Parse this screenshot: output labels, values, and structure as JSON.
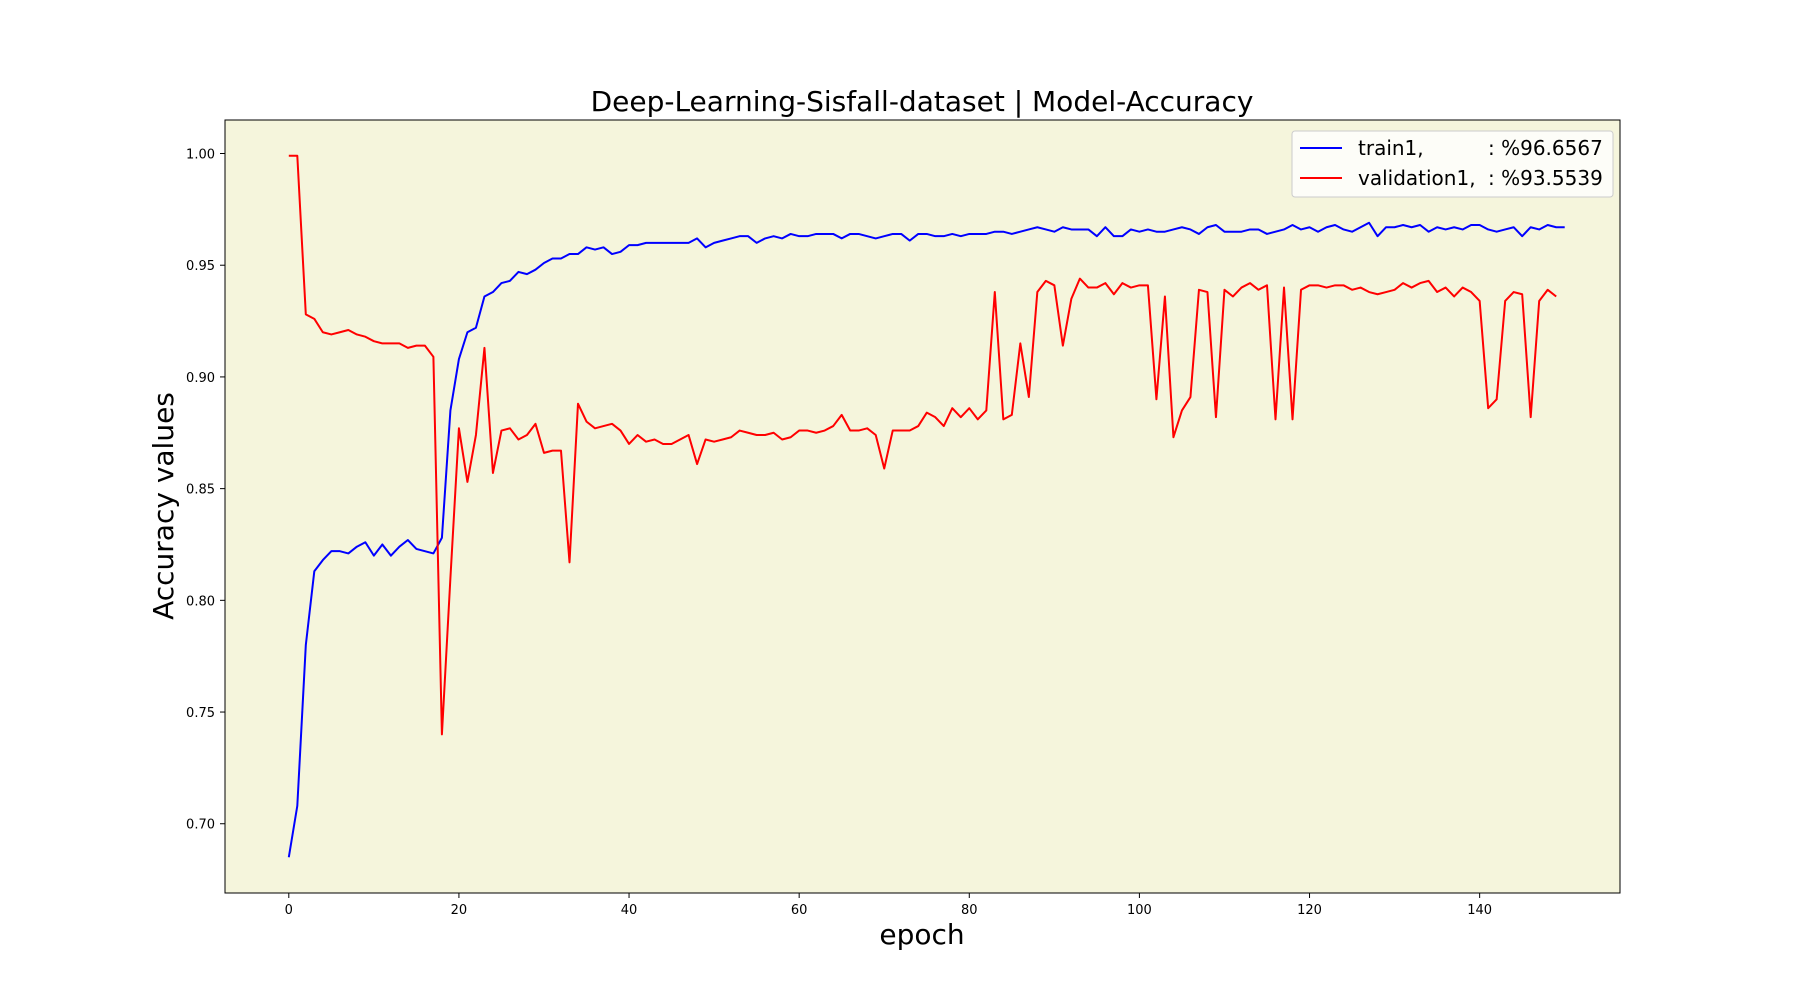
{
  "chart_data": {
    "type": "line",
    "title": "Deep-Learning-Sisfall-dataset  | Model-Accuracy",
    "xlabel": "epoch",
    "ylabel": "Accuracy values",
    "xlim": [
      -7.5,
      156.5
    ],
    "ylim": [
      0.669,
      1.015
    ],
    "xticks": [
      0,
      20,
      40,
      60,
      80,
      100,
      120,
      140
    ],
    "yticks": [
      0.7,
      0.75,
      0.8,
      0.85,
      0.9,
      0.95,
      1.0
    ],
    "xtick_labels": [
      "0",
      "20",
      "40",
      "60",
      "80",
      "100",
      "120",
      "140"
    ],
    "ytick_labels": [
      "0.70",
      "0.75",
      "0.80",
      "0.85",
      "0.90",
      "0.95",
      "1.00"
    ],
    "grid": false,
    "legend_position": "top-right",
    "plot_background": "#f5f5dc",
    "series": [
      {
        "name": "train1,",
        "legend_value": ": %96.6567",
        "color": "#0000ff",
        "values": [
          0.685,
          0.708,
          0.78,
          0.813,
          0.818,
          0.822,
          0.822,
          0.821,
          0.824,
          0.826,
          0.82,
          0.825,
          0.82,
          0.824,
          0.827,
          0.823,
          0.822,
          0.821,
          0.828,
          0.885,
          0.908,
          0.92,
          0.922,
          0.936,
          0.938,
          0.942,
          0.943,
          0.947,
          0.946,
          0.948,
          0.951,
          0.953,
          0.953,
          0.955,
          0.955,
          0.958,
          0.957,
          0.958,
          0.955,
          0.956,
          0.959,
          0.959,
          0.96,
          0.96,
          0.96,
          0.96,
          0.96,
          0.96,
          0.962,
          0.958,
          0.96,
          0.961,
          0.962,
          0.963,
          0.963,
          0.96,
          0.962,
          0.963,
          0.962,
          0.964,
          0.963,
          0.963,
          0.964,
          0.964,
          0.964,
          0.962,
          0.964,
          0.964,
          0.963,
          0.962,
          0.963,
          0.964,
          0.964,
          0.961,
          0.964,
          0.964,
          0.963,
          0.963,
          0.964,
          0.963,
          0.964,
          0.964,
          0.964,
          0.965,
          0.965,
          0.964,
          0.965,
          0.966,
          0.967,
          0.966,
          0.965,
          0.967,
          0.966,
          0.966,
          0.966,
          0.963,
          0.967,
          0.963,
          0.963,
          0.966,
          0.965,
          0.966,
          0.965,
          0.965,
          0.966,
          0.967,
          0.966,
          0.964,
          0.967,
          0.968,
          0.965,
          0.965,
          0.965,
          0.966,
          0.966,
          0.964,
          0.965,
          0.966,
          0.968,
          0.966,
          0.967,
          0.965,
          0.967,
          0.968,
          0.966,
          0.965,
          0.967,
          0.969,
          0.963,
          0.967,
          0.967,
          0.968,
          0.967,
          0.968,
          0.965,
          0.967,
          0.966,
          0.967,
          0.966,
          0.968,
          0.968,
          0.966,
          0.965,
          0.966,
          0.967,
          0.963,
          0.967,
          0.966,
          0.968,
          0.967,
          0.967
        ]
      },
      {
        "name": "validation1,",
        "legend_value": ": %93.5539",
        "color": "#ff0000",
        "values": [
          0.999,
          0.999,
          0.928,
          0.926,
          0.92,
          0.919,
          0.92,
          0.921,
          0.919,
          0.918,
          0.916,
          0.915,
          0.915,
          0.915,
          0.913,
          0.914,
          0.914,
          0.909,
          0.74,
          0.81,
          0.877,
          0.853,
          0.874,
          0.913,
          0.857,
          0.876,
          0.877,
          0.872,
          0.874,
          0.879,
          0.866,
          0.867,
          0.867,
          0.817,
          0.888,
          0.88,
          0.877,
          0.878,
          0.879,
          0.876,
          0.87,
          0.874,
          0.871,
          0.872,
          0.87,
          0.87,
          0.872,
          0.874,
          0.861,
          0.872,
          0.871,
          0.872,
          0.873,
          0.876,
          0.875,
          0.874,
          0.874,
          0.875,
          0.872,
          0.873,
          0.876,
          0.876,
          0.875,
          0.876,
          0.878,
          0.883,
          0.876,
          0.876,
          0.877,
          0.874,
          0.859,
          0.876,
          0.876,
          0.876,
          0.878,
          0.884,
          0.882,
          0.878,
          0.886,
          0.882,
          0.886,
          0.881,
          0.885,
          0.938,
          0.881,
          0.883,
          0.915,
          0.891,
          0.938,
          0.943,
          0.941,
          0.914,
          0.935,
          0.944,
          0.94,
          0.94,
          0.942,
          0.937,
          0.942,
          0.94,
          0.941,
          0.941,
          0.89,
          0.936,
          0.873,
          0.885,
          0.891,
          0.939,
          0.938,
          0.882,
          0.939,
          0.936,
          0.94,
          0.942,
          0.939,
          0.941,
          0.881,
          0.94,
          0.881,
          0.939,
          0.941,
          0.941,
          0.94,
          0.941,
          0.941,
          0.939,
          0.94,
          0.938,
          0.937,
          0.938,
          0.939,
          0.942,
          0.94,
          0.942,
          0.943,
          0.938,
          0.94,
          0.936,
          0.94,
          0.938,
          0.934,
          0.886,
          0.89,
          0.934,
          0.938,
          0.937,
          0.882,
          0.934,
          0.939,
          0.936
        ]
      }
    ]
  }
}
